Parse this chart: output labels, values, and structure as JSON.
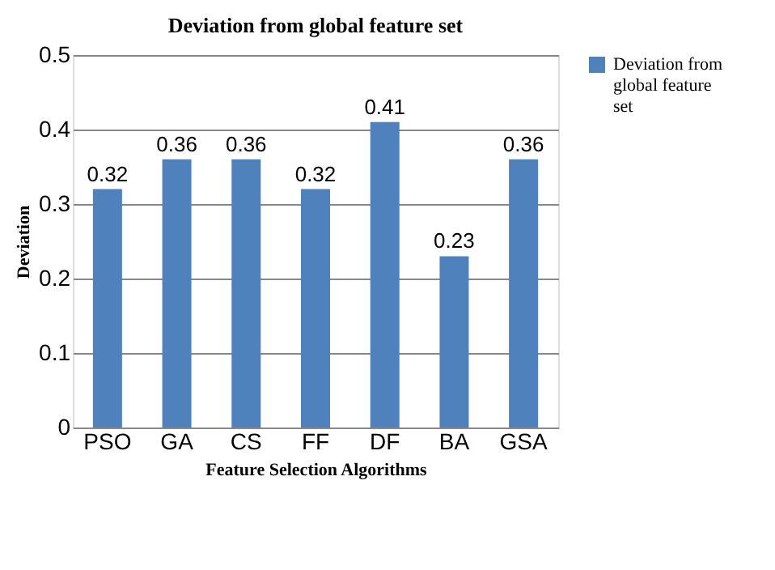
{
  "chart_data": {
    "type": "bar",
    "title": "Deviation from global feature set",
    "xlabel": "Feature Selection Algorithms",
    "ylabel": "Deviation",
    "categories": [
      "PSO",
      "GA",
      "CS",
      "FF",
      "DF",
      "BA",
      "GSA"
    ],
    "series": [
      {
        "name": "Deviation from global feature set",
        "color": "#4f81bd",
        "values": [
          0.32,
          0.36,
          0.36,
          0.32,
          0.41,
          0.23,
          0.36
        ]
      }
    ],
    "ylim": [
      0,
      0.5
    ],
    "yticks": [
      0,
      0.1,
      0.2,
      0.3,
      0.4,
      0.5
    ],
    "grid": "y",
    "legend": "right",
    "data_labels": true
  }
}
